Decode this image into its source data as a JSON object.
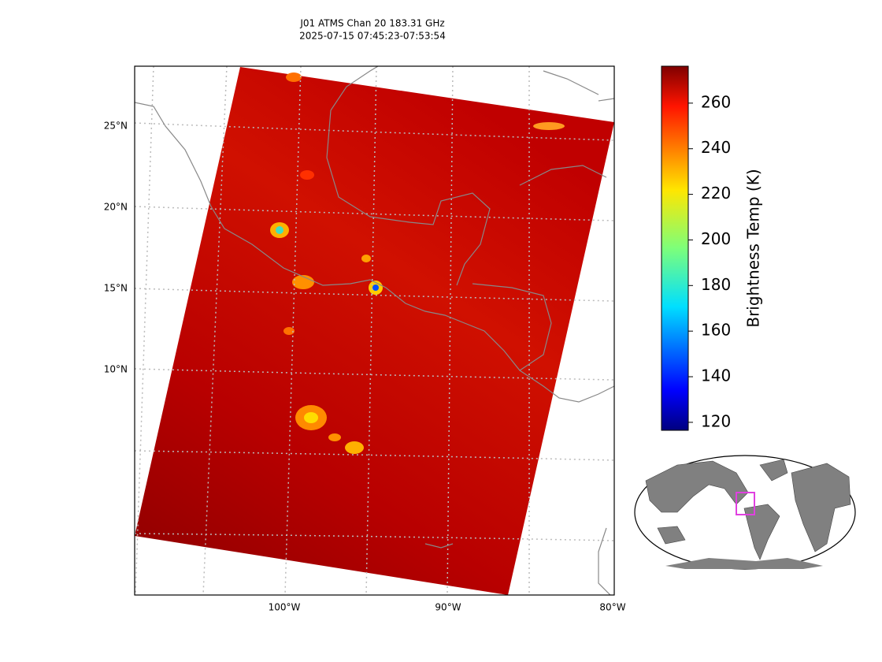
{
  "chart_data": {
    "type": "map",
    "title": "J01 ATMS Chan 20 183.31 GHz",
    "subtitle": "2025-07-15 07:45:23-07:53:54",
    "lat_labels": [
      "25°N",
      "20°N",
      "15°N",
      "10°N"
    ],
    "lon_labels": [
      "100°W",
      "90°W",
      "80°W"
    ],
    "colorbar": {
      "label": "Brightness Temp (K)",
      "lim": [
        116.5,
        276.2
      ],
      "ticks": [
        120,
        140,
        160,
        180,
        200,
        220,
        240,
        260
      ]
    }
  }
}
